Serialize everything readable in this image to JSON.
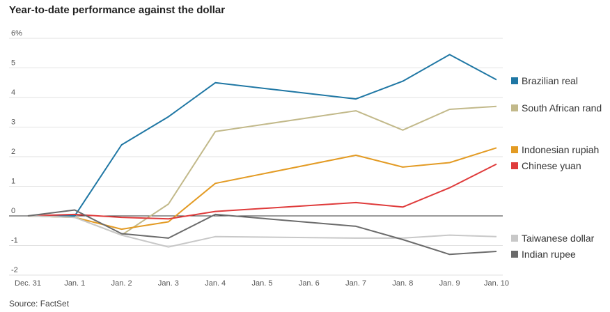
{
  "title": "Year-to-date performance against the dollar",
  "source": "Source: FactSet",
  "chart_data": {
    "type": "line",
    "x": [
      "Dec. 31",
      "Jan. 1",
      "Jan. 2",
      "Jan. 3",
      "Jan. 4",
      "Jan. 5",
      "Jan. 6",
      "Jan. 7",
      "Jan. 8",
      "Jan. 9",
      "Jan. 10"
    ],
    "ylim": [
      -2,
      6
    ],
    "yticks": [
      6,
      5,
      4,
      3,
      2,
      1,
      0,
      -1,
      -2
    ],
    "ytick_labels": [
      "6%",
      "5",
      "4",
      "3",
      "2",
      "1",
      "0",
      "-1",
      "-2"
    ],
    "grid": true,
    "legend": "right",
    "series": [
      {
        "name": "Brazilian real",
        "color": "#1f77a4",
        "points": [
          [
            0,
            0
          ],
          [
            1,
            0
          ],
          [
            2,
            2.4
          ],
          [
            3,
            3.35
          ],
          [
            4,
            4.5
          ],
          [
            7,
            3.95
          ],
          [
            8,
            4.55
          ],
          [
            9,
            5.45
          ],
          [
            10,
            4.6
          ]
        ]
      },
      {
        "name": "South African rand",
        "color": "#c2b98a",
        "points": [
          [
            0,
            0
          ],
          [
            1,
            -0.05
          ],
          [
            2,
            -0.65
          ],
          [
            3,
            0.4
          ],
          [
            4,
            2.85
          ],
          [
            7,
            3.55
          ],
          [
            8,
            2.9
          ],
          [
            9,
            3.6
          ],
          [
            10,
            3.7
          ]
        ]
      },
      {
        "name": "Indonesian rupiah",
        "color": "#e39b24",
        "points": [
          [
            0,
            0
          ],
          [
            1,
            -0.05
          ],
          [
            2,
            -0.45
          ],
          [
            3,
            -0.2
          ],
          [
            4,
            1.1
          ],
          [
            7,
            2.05
          ],
          [
            8,
            1.65
          ],
          [
            9,
            1.8
          ],
          [
            10,
            2.3
          ]
        ]
      },
      {
        "name": "Chinese yuan",
        "color": "#df3b3b",
        "points": [
          [
            0,
            0
          ],
          [
            1,
            0.05
          ],
          [
            2,
            -0.05
          ],
          [
            3,
            -0.1
          ],
          [
            4,
            0.15
          ],
          [
            7,
            0.45
          ],
          [
            8,
            0.3
          ],
          [
            9,
            0.95
          ],
          [
            10,
            1.75
          ]
        ]
      },
      {
        "name": "Taiwanese dollar",
        "color": "#c8c8c8",
        "points": [
          [
            0,
            0
          ],
          [
            1,
            -0.05
          ],
          [
            2,
            -0.65
          ],
          [
            3,
            -1.05
          ],
          [
            4,
            -0.7
          ],
          [
            7,
            -0.75
          ],
          [
            8,
            -0.75
          ],
          [
            9,
            -0.65
          ],
          [
            10,
            -0.7
          ]
        ]
      },
      {
        "name": "Indian rupee",
        "color": "#6b6b6b",
        "points": [
          [
            0,
            0
          ],
          [
            1,
            0.2
          ],
          [
            2,
            -0.6
          ],
          [
            3,
            -0.75
          ],
          [
            4,
            0.05
          ],
          [
            7,
            -0.35
          ],
          [
            8,
            -0.8
          ],
          [
            9,
            -1.3
          ],
          [
            10,
            -1.2
          ]
        ]
      }
    ]
  }
}
